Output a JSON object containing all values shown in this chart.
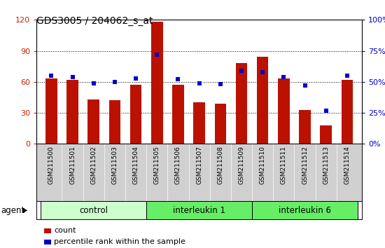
{
  "title": "GDS3005 / 204062_s_at",
  "samples": [
    "GSM211500",
    "GSM211501",
    "GSM211502",
    "GSM211503",
    "GSM211504",
    "GSM211505",
    "GSM211506",
    "GSM211507",
    "GSM211508",
    "GSM211509",
    "GSM211510",
    "GSM211511",
    "GSM211512",
    "GSM211513",
    "GSM211514"
  ],
  "counts": [
    63,
    62,
    43,
    42,
    57,
    118,
    57,
    40,
    39,
    78,
    84,
    63,
    33,
    18,
    62
  ],
  "percentile": [
    55,
    54,
    49,
    50,
    53,
    72,
    52,
    49,
    48,
    59,
    58,
    54,
    47,
    27,
    55
  ],
  "groups": [
    {
      "label": "control",
      "start": 0,
      "end": 4,
      "color": "#ccffcc"
    },
    {
      "label": "interleukin 1",
      "start": 5,
      "end": 9,
      "color": "#66ee66"
    },
    {
      "label": "interleukin 6",
      "start": 10,
      "end": 14,
      "color": "#66ee66"
    }
  ],
  "bar_color": "#bb1100",
  "dot_color": "#0000cc",
  "bar_width": 0.55,
  "ylim_left": [
    0,
    120
  ],
  "ylim_right": [
    0,
    100
  ],
  "yticks_left": [
    0,
    30,
    60,
    90,
    120
  ],
  "yticks_right": [
    0,
    25,
    50,
    75,
    100
  ],
  "ylabel_left_color": "#cc2200",
  "ylabel_right_color": "#0000cc",
  "plot_bg_color": "#ffffff",
  "tick_bg_color": "#d0d0d0",
  "agent_label": "agent",
  "legend_count": "count",
  "legend_percentile": "percentile rank within the sample",
  "title_fontsize": 10,
  "tick_fontsize": 6.5,
  "group_fontsize": 8.5
}
